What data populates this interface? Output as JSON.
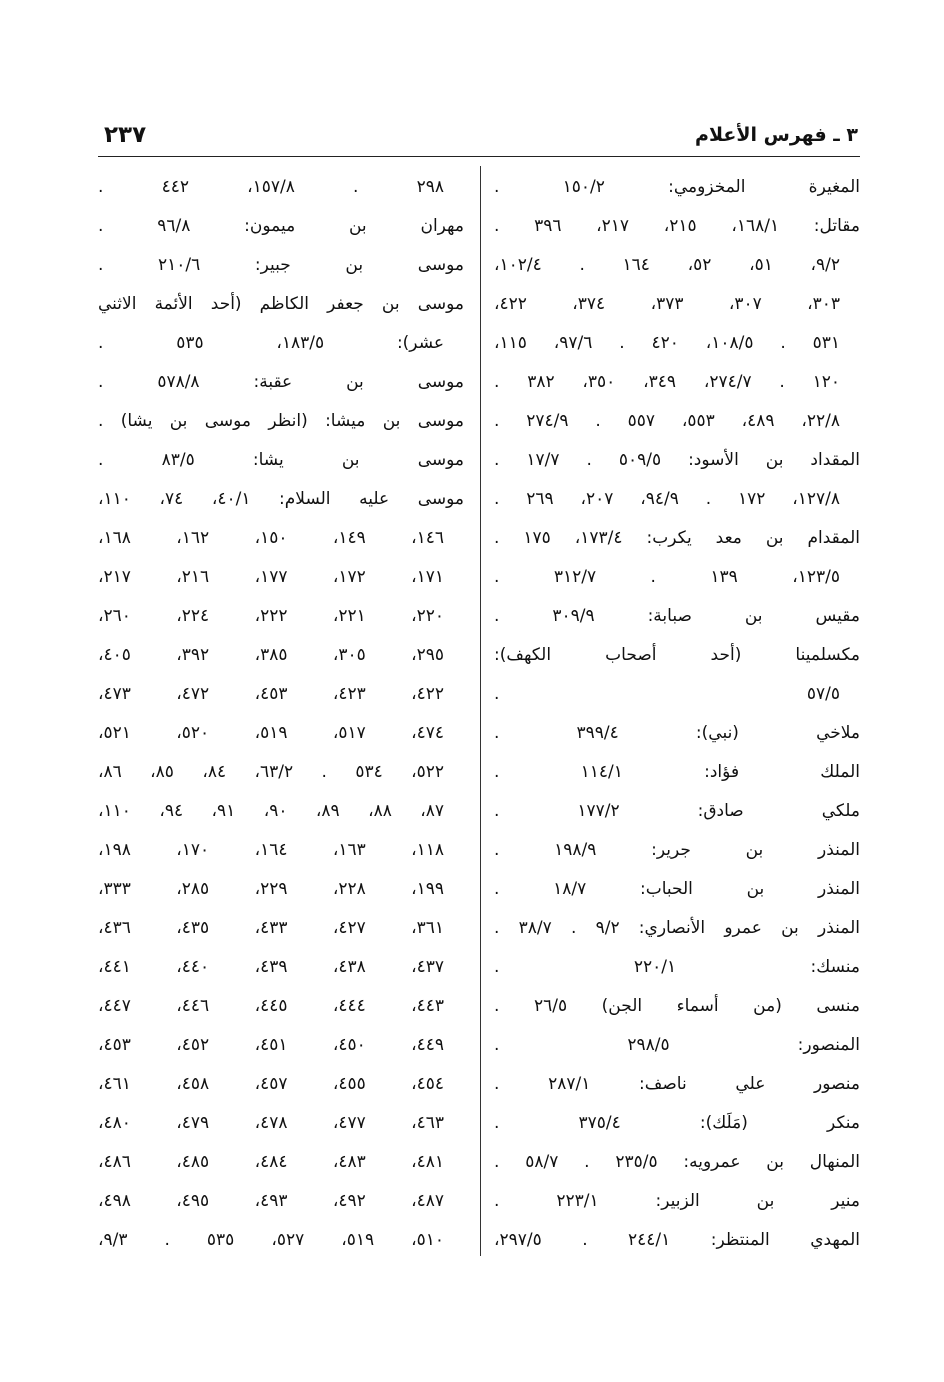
{
  "header": {
    "page_number": "٢٣٧",
    "title": "٣ ـ فهرس الأعلام"
  },
  "right_column": [
    {
      "text": "المغيرة المخزومي: ١٥٠/٢ .",
      "cont": false
    },
    {
      "text": "مقاتل: ١٦٨/١، ٢١٥، ٢١٧، ٣٩٦ .",
      "cont": false
    },
    {
      "text": "٩/٢، ٥١، ٥٢، ١٦٤ . ١٠٢/٤،",
      "cont": true
    },
    {
      "text": "٣٠٣، ٣٠٧، ٣٧٣، ٣٧٤، ٤٢٢،",
      "cont": true
    },
    {
      "text": "٥٣١ . ١٠٨/٥، ٤٢٠ . ٩٧/٦، ١١٥،",
      "cont": true
    },
    {
      "text": "١٢٠ . ٢٧٤/٧، ٣٤٩، ٣٥٠، ٣٨٢ .",
      "cont": true
    },
    {
      "text": "٢٢/٨، ٤٨٩، ٥٥٣، ٥٥٧ . ٢٧٤/٩ .",
      "cont": true
    },
    {
      "text": "المقداد بن الأسود: ٥٠٩/٥ . ١٧/٧ .",
      "cont": false
    },
    {
      "text": "١٢٧/٨، ١٧٢ . ٩٤/٩، ٢٠٧، ٢٦٩ .",
      "cont": true
    },
    {
      "text": "المقدام بن معد يكرب: ١٧٣/٤، ١٧٥ .",
      "cont": false
    },
    {
      "text": "١٢٣/٥، ١٣٩ . ٣١٢/٧ .",
      "cont": true
    },
    {
      "text": "مقيس بن صبابة: ٣٠٩/٩ .",
      "cont": false
    },
    {
      "text": "مكسلمينا (أحد أصحاب الكهف):",
      "cont": false
    },
    {
      "text": "٥٧/٥ .",
      "cont": true
    },
    {
      "text": "ملاخي (نبي): ٣٩٩/٤ .",
      "cont": false
    },
    {
      "text": "الملك فؤاد: ١١٤/١ .",
      "cont": false
    },
    {
      "text": "ملكي صادق: ١٧٧/٢ .",
      "cont": false
    },
    {
      "text": "المنذر بن جرير: ١٩٨/٩ .",
      "cont": false
    },
    {
      "text": "المنذر بن الحباب: ١٨/٧ .",
      "cont": false
    },
    {
      "text": "المنذر بن عمرو الأنصاري: ٩/٢ . ٣٨/٧ .",
      "cont": false
    },
    {
      "text": "منسك: ٢٢٠/١ .",
      "cont": false
    },
    {
      "text": "منسى (من أسماء الجن) ٢٦/٥ .",
      "cont": false
    },
    {
      "text": "المنصور: ٢٩٨/٥ .",
      "cont": false
    },
    {
      "text": "منصور علي ناصف: ٢٨٧/١ .",
      "cont": false
    },
    {
      "text": "منكر (مَلَك): ٣٧٥/٤ .",
      "cont": false
    },
    {
      "text": "المنهال بن عمرويه: ٢٣٥/٥ . ٥٨/٧ .",
      "cont": false
    },
    {
      "text": "منير بن الزبير: ٢٢٣/١ .",
      "cont": false
    },
    {
      "text": "المهدي المنتظر: ٢٤٤/١ . ٢٩٧/٥،",
      "cont": false
    }
  ],
  "left_column": [
    {
      "text": "٢٩٨ . ١٥٧/٨، ٤٤٢ .",
      "cont": true
    },
    {
      "text": "مهران بن ميمون: ٩٦/٨ .",
      "cont": false
    },
    {
      "text": "موسى بن جبير: ٢١٠/٦ .",
      "cont": false
    },
    {
      "text": "موسى بن جعفر الكاظم (أحد الأئمة الاثني",
      "cont": false
    },
    {
      "text": "عشر): ١٨٣/٥، ٥٣٥ .",
      "cont": true
    },
    {
      "text": "موسى بن عقبة: ٥٧٨/٨ .",
      "cont": false
    },
    {
      "text": "موسى بن ميشا: (انظر موسى بن يشا) .",
      "cont": false
    },
    {
      "text": "موسى بن يشا: ٨٣/٥ .",
      "cont": false
    },
    {
      "text": "موسى عليه السلام: ٤٠/١، ٧٤، ١١٠،",
      "cont": false
    },
    {
      "text": "١٤٦، ١٤٩، ١٥٠، ١٦٢، ١٦٨،",
      "cont": true
    },
    {
      "text": "١٧١، ١٧٢، ١٧٧، ٢١٦، ٢١٧،",
      "cont": true
    },
    {
      "text": "٢٢٠، ٢٢١، ٢٢٢، ٢٢٤، ٢٦٠،",
      "cont": true
    },
    {
      "text": "٢٩٥، ٣٠٥، ٣٨٥، ٣٩٢، ٤٠٥،",
      "cont": true
    },
    {
      "text": "٤٢٢، ٤٢٣، ٤٥٣، ٤٧٢، ٤٧٣،",
      "cont": true
    },
    {
      "text": "٤٧٤، ٥١٧، ٥١٩، ٥٢٠، ٥٢١،",
      "cont": true
    },
    {
      "text": "٥٢٢، ٥٣٤ . ٦٣/٢، ٨٤، ٨٥، ٨٦،",
      "cont": true
    },
    {
      "text": "٨٧، ٨٨، ٨٩، ٩٠، ٩١، ٩٤، ١١٠،",
      "cont": true
    },
    {
      "text": "١١٨، ١٦٣، ١٦٤، ١٧٠، ١٩٨،",
      "cont": true
    },
    {
      "text": "١٩٩، ٢٢٨، ٢٢٩، ٢٨٥، ٣٣٣،",
      "cont": true
    },
    {
      "text": "٣٦١، ٤٢٧، ٤٣٣، ٤٣٥، ٤٣٦،",
      "cont": true
    },
    {
      "text": "٤٣٧، ٤٣٨، ٤٣٩، ٤٤٠، ٤٤١،",
      "cont": true
    },
    {
      "text": "٤٤٣، ٤٤٤، ٤٤٥، ٤٤٦، ٤٤٧،",
      "cont": true
    },
    {
      "text": "٤٤٩، ٤٥٠، ٤٥١، ٤٥٢، ٤٥٣،",
      "cont": true
    },
    {
      "text": "٤٥٤، ٤٥٥، ٤٥٧، ٤٥٨، ٤٦١،",
      "cont": true
    },
    {
      "text": "٤٦٣، ٤٧٧، ٤٧٨، ٤٧٩، ٤٨٠،",
      "cont": true
    },
    {
      "text": "٤٨١، ٤٨٣، ٤٨٤، ٤٨٥، ٤٨٦،",
      "cont": true
    },
    {
      "text": "٤٨٧، ٤٩٢، ٤٩٣، ٤٩٥، ٤٩٨،",
      "cont": true
    },
    {
      "text": "٥١٠، ٥١٩، ٥٢٧، ٥٣٥ . ٩/٣،",
      "cont": true
    }
  ]
}
